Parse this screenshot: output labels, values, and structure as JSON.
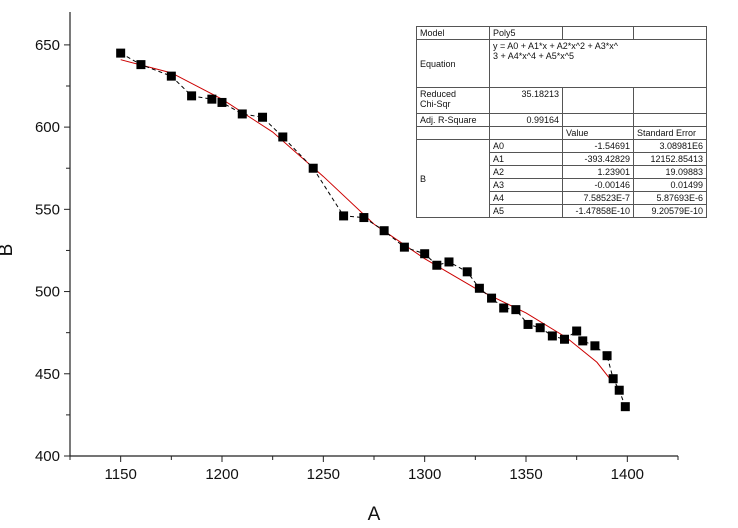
{
  "chart_data": {
    "type": "scatter",
    "title": "",
    "xlabel": "A",
    "ylabel": "B",
    "xlim": [
      1125,
      1425
    ],
    "ylim": [
      400,
      670
    ],
    "xticks": [
      1150,
      1200,
      1250,
      1300,
      1350,
      1400
    ],
    "yticks": [
      400,
      450,
      500,
      550,
      600,
      650
    ],
    "grid": false,
    "series": [
      {
        "marker": "square",
        "line_style": "dashed",
        "marker_color": "#000000",
        "points": [
          [
            1150,
            645
          ],
          [
            1160,
            638
          ],
          [
            1175,
            631
          ],
          [
            1185,
            619
          ],
          [
            1195,
            617
          ],
          [
            1200,
            615
          ],
          [
            1210,
            608
          ],
          [
            1220,
            606
          ],
          [
            1230,
            594
          ],
          [
            1245,
            575
          ],
          [
            1260,
            546
          ],
          [
            1270,
            545
          ],
          [
            1280,
            537
          ],
          [
            1290,
            527
          ],
          [
            1300,
            523
          ],
          [
            1306,
            516
          ],
          [
            1312,
            518
          ],
          [
            1321,
            512
          ],
          [
            1327,
            502
          ],
          [
            1333,
            496
          ],
          [
            1339,
            490
          ],
          [
            1345,
            489
          ],
          [
            1351,
            480
          ],
          [
            1357,
            478
          ],
          [
            1363,
            473
          ],
          [
            1369,
            471
          ],
          [
            1375,
            476
          ],
          [
            1378,
            470
          ],
          [
            1384,
            467
          ],
          [
            1390,
            461
          ],
          [
            1393,
            447
          ],
          [
            1396,
            440
          ],
          [
            1399,
            430
          ]
        ]
      },
      {
        "type": "line",
        "line_color": "#cc0000",
        "points": [
          [
            1150,
            641
          ],
          [
            1175,
            633
          ],
          [
            1200,
            617
          ],
          [
            1225,
            597
          ],
          [
            1250,
            570
          ],
          [
            1275,
            541
          ],
          [
            1300,
            520
          ],
          [
            1325,
            502
          ],
          [
            1350,
            487
          ],
          [
            1370,
            472
          ],
          [
            1385,
            457
          ],
          [
            1392,
            446
          ]
        ]
      }
    ],
    "fit_table": {
      "model_label": "Model",
      "model_value": "Poly5",
      "equation_label": "Equation",
      "equation_line1": "y = A0 + A1*x + A2*x^2 + A3*x^",
      "equation_line2": "3 + A4*x^4 + A5*x^5",
      "chisq_label1": "Reduced",
      "chisq_label2": "Chi-Sqr",
      "chisq_value": "35.18213",
      "r2_label": "Adj. R-Square",
      "r2_value": "0.99164",
      "value_header": "Value",
      "error_header": "Standard Error",
      "param_group": "B",
      "params": [
        {
          "name": "A0",
          "value": "-1.54691",
          "error": "3.08981E6"
        },
        {
          "name": "A1",
          "value": "-393.42829",
          "error": "12152.85413"
        },
        {
          "name": "A2",
          "value": "1.23901",
          "error": "19.09883"
        },
        {
          "name": "A3",
          "value": "-0.00146",
          "error": "0.01499"
        },
        {
          "name": "A4",
          "value": "7.58523E-7",
          "error": "5.87693E-6"
        },
        {
          "name": "A5",
          "value": "-1.47858E-10",
          "error": "9.20579E-10"
        }
      ]
    }
  }
}
